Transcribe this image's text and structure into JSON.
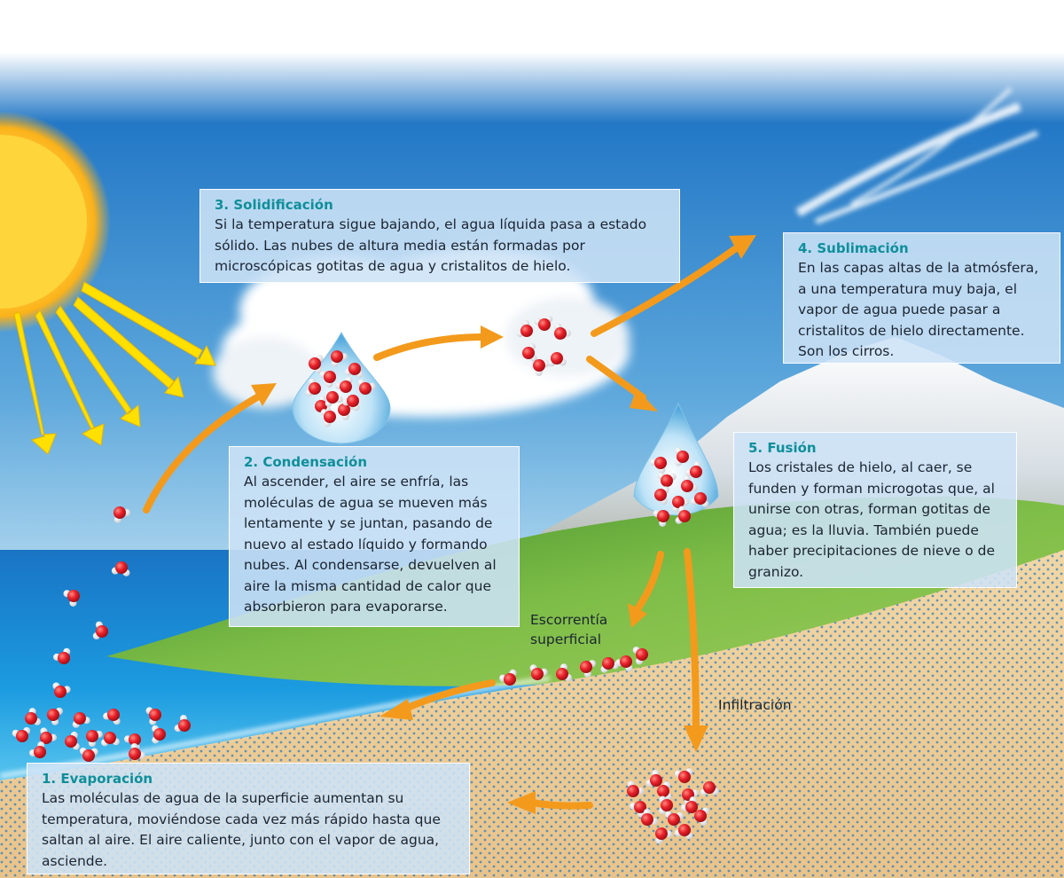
{
  "steps": [
    {
      "title": "1. Evaporación",
      "text": "Las moléculas de agua de la superficie aumentan su\ntemperatura, moviéndose cada vez más rápido hasta que\nsaltan al aire. El aire caliente, junto con el vapor de agua,\nasciende."
    },
    {
      "title": "2. Condensación",
      "text": "Al ascender, el aire se enfría, las\nmoléculas de agua se mueven más\nlentamente y se juntan, pasando de\nnuevo al estado líquido y formando\nnubes. Al condensarse, devuelven al\naire la misma cantidad de calor que\nabsorbieron para evaporarse."
    },
    {
      "title": "3. Solidificación",
      "text": "Si la temperatura sigue bajando, el agua líquida pasa a estado\nsólido. Las nubes de altura media están formadas por\nmicroscópicas gotitas de agua y cristalitos de hielo."
    },
    {
      "title": "4. Sublimación",
      "text": "En las capas altas de la atmósfera,\na una temperatura muy baja, el\nvapor de agua puede pasar a\ncristalitos de hielo directamente.\nSon los cirros."
    },
    {
      "title": "5. Fusión",
      "text": "Los cristales de hielo, al caer, se\nfunden y forman microgotas que, al\nunirse con otras, forman gotitas de\nagua; es la lluvia. También puede\nhaber precipitaciones de nieve o de\ngranizo."
    }
  ],
  "labels": {
    "runoff": "Escorrentía\nsuperficial",
    "infiltration": "Infiltración"
  },
  "colors": {
    "sky_top": "#1f78c8",
    "sea": "#1a74c4",
    "sand": "#efcf9a",
    "grass": "#6fae3c",
    "arrow": "#f39a1c",
    "sun": "#fbd22e",
    "ray": "#ffe000",
    "oxygen": "#e8202a",
    "hydrogen": "#ffffff",
    "title": "#0e8f9a"
  }
}
